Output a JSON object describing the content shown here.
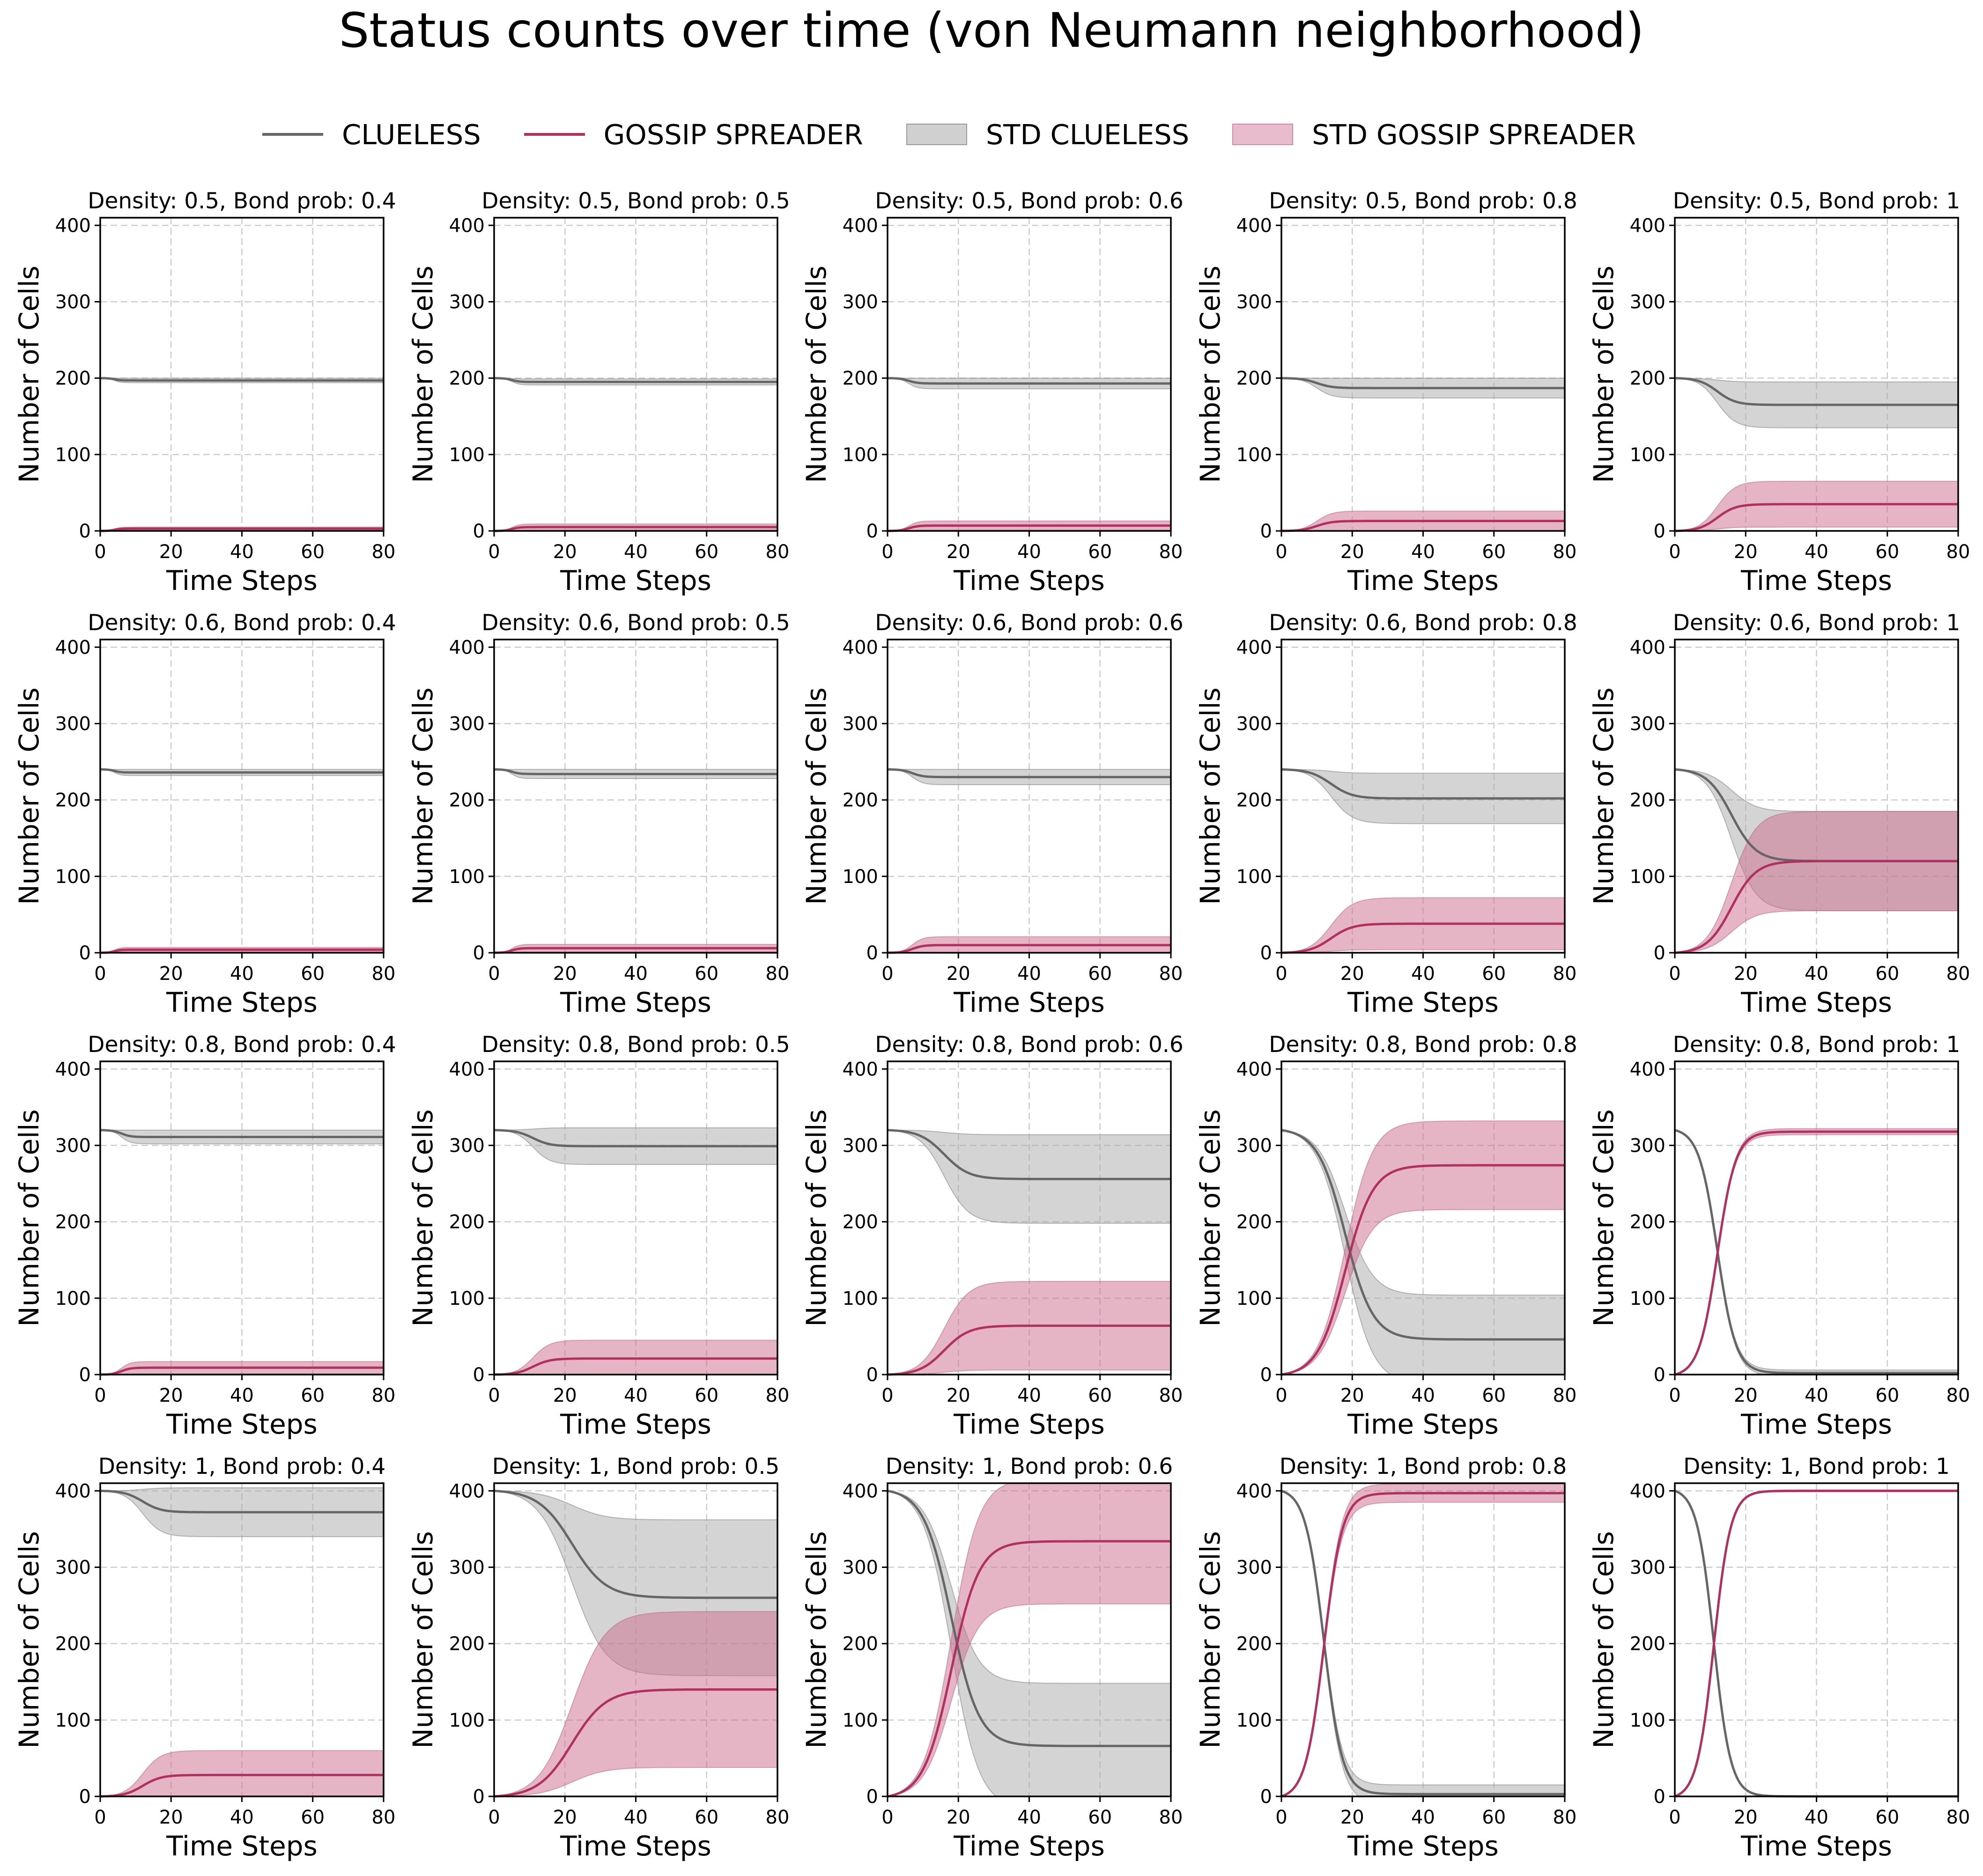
{
  "figure_title": "Status counts over time (von Neumann neighborhood)",
  "legend": [
    {
      "label": "CLUELESS",
      "kind": "line",
      "color": "#666666"
    },
    {
      "label": "GOSSIP SPREADER",
      "kind": "line",
      "color": "#b03060"
    },
    {
      "label": "STD CLUELESS",
      "kind": "band",
      "color": "#a9a9a9"
    },
    {
      "label": "STD GOSSIP SPREADER",
      "kind": "band",
      "color": "#cc6b8e"
    }
  ],
  "colors": {
    "clueless_line": "#666666",
    "gossip_line": "#b03060",
    "clueless_band": "#a9a9a9",
    "gossip_band": "#cc6b8e",
    "grid": "#cccccc"
  },
  "chart_data": {
    "type": "line",
    "layout": "4x5 grid of subplots",
    "xlabel": "Time Steps",
    "ylabel": "Number of Cells",
    "xlim": [
      0,
      80
    ],
    "ylim": [
      0,
      410
    ],
    "xticks": [
      0,
      20,
      40,
      60,
      80
    ],
    "yticks": [
      0,
      100,
      200,
      300,
      400
    ],
    "grid": true,
    "grid_style": "dashed",
    "legend_position": "top-center",
    "series_names": [
      "CLUELESS",
      "GOSSIP SPREADER",
      "STD CLUELESS",
      "STD GOSSIP SPREADER"
    ],
    "panels": [
      {
        "title": "Density: 0.5, Bond prob: 0.4",
        "start": 200,
        "clueless_final": 197,
        "clueless_std": 3,
        "gossip_final": 3,
        "gossip_std": 2,
        "rise_time": 4
      },
      {
        "title": "Density: 0.5, Bond prob: 0.5",
        "start": 200,
        "clueless_final": 195,
        "clueless_std": 4,
        "gossip_final": 5,
        "gossip_std": 4,
        "rise_time": 5
      },
      {
        "title": "Density: 0.5, Bond prob: 0.6",
        "start": 200,
        "clueless_final": 193,
        "clueless_std": 7,
        "gossip_final": 7,
        "gossip_std": 6,
        "rise_time": 6
      },
      {
        "title": "Density: 0.5, Bond prob: 0.8",
        "start": 200,
        "clueless_final": 187,
        "clueless_std": 13,
        "gossip_final": 13,
        "gossip_std": 13,
        "rise_time": 10
      },
      {
        "title": "Density: 0.5, Bond prob: 1",
        "start": 200,
        "clueless_final": 165,
        "clueless_std": 30,
        "gossip_final": 35,
        "gossip_std": 30,
        "rise_time": 12
      },
      {
        "title": "Density: 0.6, Bond prob: 0.4",
        "start": 240,
        "clueless_final": 236,
        "clueless_std": 4,
        "gossip_final": 4,
        "gossip_std": 3,
        "rise_time": 4
      },
      {
        "title": "Density: 0.6, Bond prob: 0.5",
        "start": 240,
        "clueless_final": 234,
        "clueless_std": 6,
        "gossip_final": 6,
        "gossip_std": 5,
        "rise_time": 5
      },
      {
        "title": "Density: 0.6, Bond prob: 0.6",
        "start": 240,
        "clueless_final": 230,
        "clueless_std": 10,
        "gossip_final": 10,
        "gossip_std": 11,
        "rise_time": 7
      },
      {
        "title": "Density: 0.6, Bond prob: 0.8",
        "start": 240,
        "clueless_final": 202,
        "clueless_std": 33,
        "gossip_final": 38,
        "gossip_std": 34,
        "rise_time": 14
      },
      {
        "title": "Density: 0.6, Bond prob: 1",
        "start": 240,
        "clueless_final": 120,
        "clueless_std": 65,
        "gossip_final": 120,
        "gossip_std": 65,
        "rise_time": 16
      },
      {
        "title": "Density: 0.8, Bond prob: 0.4",
        "start": 320,
        "clueless_final": 311,
        "clueless_std": 9,
        "gossip_final": 9,
        "gossip_std": 8,
        "rise_time": 6
      },
      {
        "title": "Density: 0.8, Bond prob: 0.5",
        "start": 320,
        "clueless_final": 299,
        "clueless_std": 24,
        "gossip_final": 21,
        "gossip_std": 24,
        "rise_time": 11
      },
      {
        "title": "Density: 0.8, Bond prob: 0.6",
        "start": 320,
        "clueless_final": 256,
        "clueless_std": 58,
        "gossip_final": 64,
        "gossip_std": 58,
        "rise_time": 16
      },
      {
        "title": "Density: 0.8, Bond prob: 0.8",
        "start": 320,
        "clueless_final": 46,
        "clueless_std": 58,
        "gossip_final": 274,
        "gossip_std": 58,
        "rise_time": 18
      },
      {
        "title": "Density: 0.8, Bond prob: 1",
        "start": 320,
        "clueless_final": 2,
        "clueless_std": 4,
        "gossip_final": 318,
        "gossip_std": 4,
        "rise_time": 12
      },
      {
        "title": "Density: 1, Bond prob: 0.4",
        "start": 400,
        "clueless_final": 372,
        "clueless_std": 32,
        "gossip_final": 28,
        "gossip_std": 32,
        "rise_time": 12
      },
      {
        "title": "Density: 1, Bond prob: 0.5",
        "start": 400,
        "clueless_final": 260,
        "clueless_std": 102,
        "gossip_final": 140,
        "gossip_std": 102,
        "rise_time": 22
      },
      {
        "title": "Density: 1, Bond prob: 0.6",
        "start": 400,
        "clueless_final": 66,
        "clueless_std": 82,
        "gossip_final": 334,
        "gossip_std": 82,
        "rise_time": 18
      },
      {
        "title": "Density: 1, Bond prob: 0.8",
        "start": 400,
        "clueless_final": 3,
        "clueless_std": 12,
        "gossip_final": 397,
        "gossip_std": 12,
        "rise_time": 12
      },
      {
        "title": "Density: 1, Bond prob: 1",
        "start": 400,
        "clueless_final": 0,
        "clueless_std": 1,
        "gossip_final": 400,
        "gossip_std": 1,
        "rise_time": 11
      }
    ]
  }
}
